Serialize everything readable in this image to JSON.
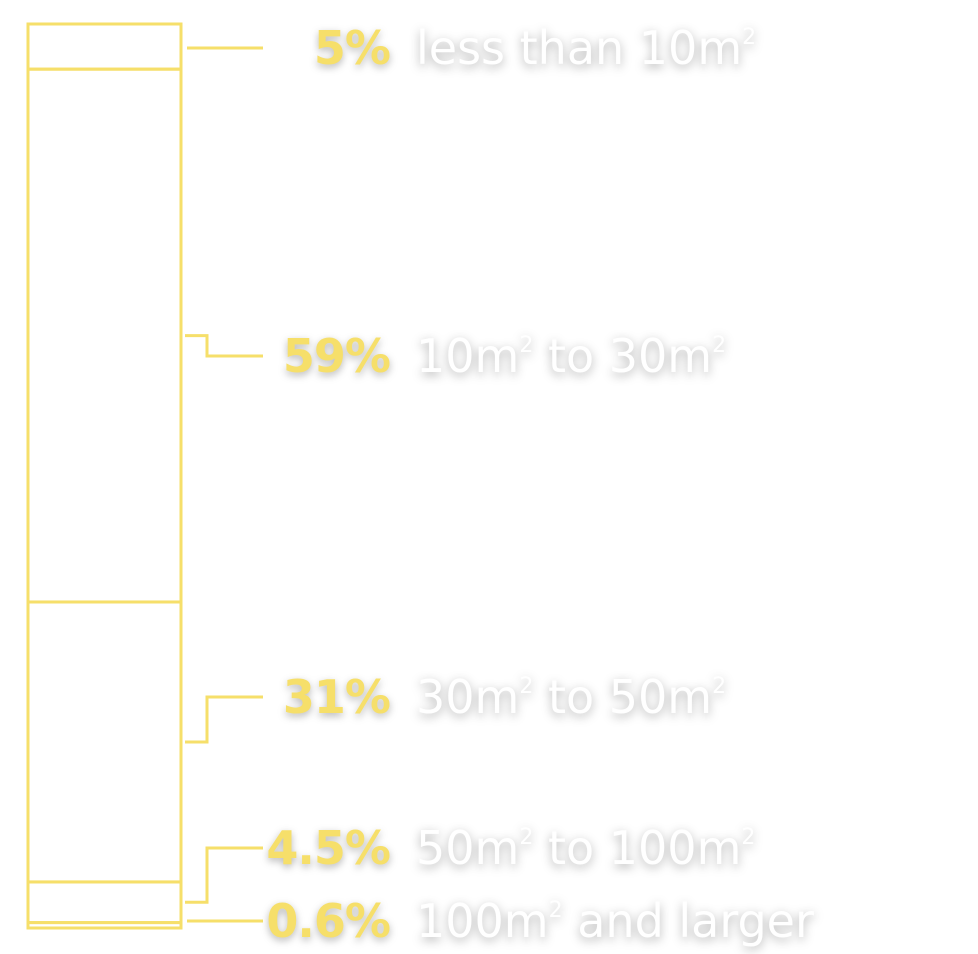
{
  "colors": {
    "accent": "#f6df6a",
    "label_text": "#ffffff",
    "background": "#ffffff"
  },
  "chart_data": {
    "type": "bar",
    "orientation": "vertical-stacked",
    "unit": "%",
    "segments": [
      {
        "value": 5,
        "value_label": "5%",
        "label": "less than 10m",
        "superscript": "2",
        "label_suffix": ""
      },
      {
        "value": 59,
        "value_label": "59%",
        "label": "10m",
        "superscript": "2",
        "label_suffix": " to 30m",
        "suffix_superscript": "2"
      },
      {
        "value": 31,
        "value_label": "31%",
        "label": "30m",
        "superscript": "2",
        "label_suffix": " to 50m",
        "suffix_superscript": "2"
      },
      {
        "value": 4.5,
        "value_label": "4.5%",
        "label": "50m",
        "superscript": "2",
        "label_suffix": " to 100m",
        "suffix_superscript": "2"
      },
      {
        "value": 0.6,
        "value_label": "0.6%",
        "label": "100m",
        "superscript": "2",
        "label_suffix": " and larger",
        "suffix_superscript": ""
      }
    ]
  }
}
